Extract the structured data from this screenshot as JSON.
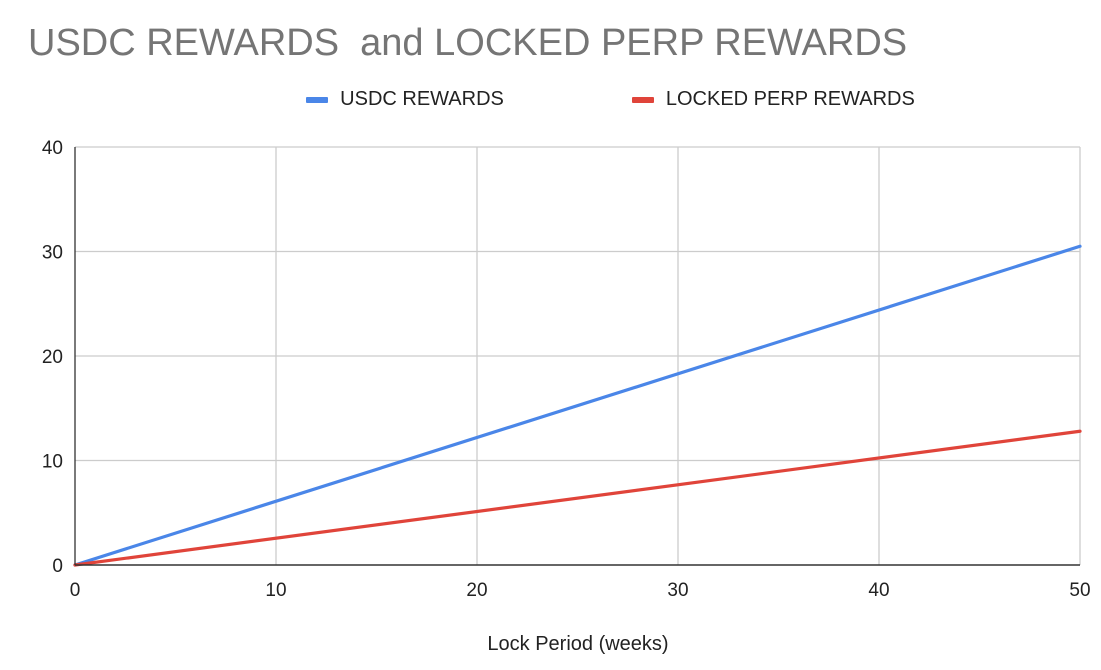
{
  "chart_data": {
    "type": "line",
    "title": "USDC REWARDS  and LOCKED PERP REWARDS",
    "xlabel": "Lock Period (weeks)",
    "ylabel": "",
    "xlim": [
      0,
      50
    ],
    "ylim": [
      0,
      40
    ],
    "xticks": [
      0,
      10,
      20,
      30,
      40,
      50
    ],
    "yticks": [
      0,
      10,
      20,
      30,
      40
    ],
    "grid": true,
    "legend_position": "top-center",
    "series": [
      {
        "name": "USDC REWARDS",
        "color": "#4a86e8",
        "x": [
          0,
          50
        ],
        "values": [
          0,
          30.5
        ]
      },
      {
        "name": "LOCKED PERP REWARDS",
        "color": "#e0443a",
        "x": [
          0,
          50
        ],
        "values": [
          0,
          12.8
        ]
      }
    ]
  }
}
